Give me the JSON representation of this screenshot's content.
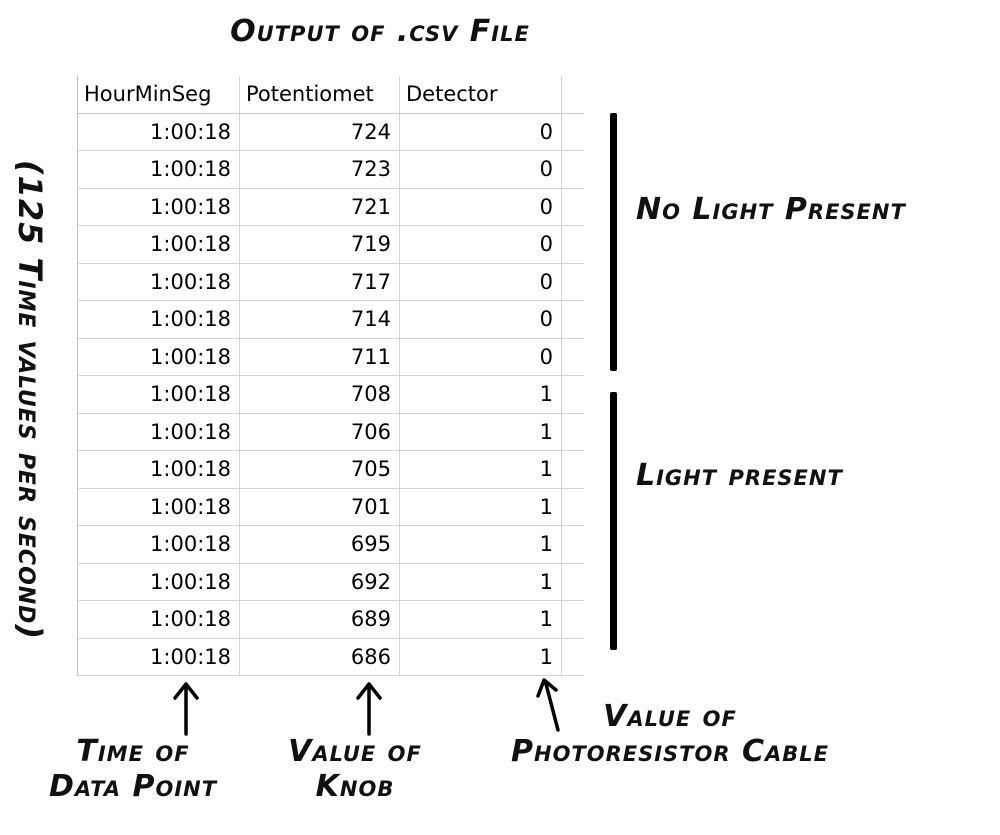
{
  "title": "Output of .csv File",
  "side_note": "(125 Time values per second)",
  "sheet": {
    "headers": [
      "HourMinSeg",
      "Potentiomet",
      "Detector"
    ],
    "rows": [
      [
        "1:00:18",
        "724",
        "0"
      ],
      [
        "1:00:18",
        "723",
        "0"
      ],
      [
        "1:00:18",
        "721",
        "0"
      ],
      [
        "1:00:18",
        "719",
        "0"
      ],
      [
        "1:00:18",
        "717",
        "0"
      ],
      [
        "1:00:18",
        "714",
        "0"
      ],
      [
        "1:00:18",
        "711",
        "0"
      ],
      [
        "1:00:18",
        "708",
        "1"
      ],
      [
        "1:00:18",
        "706",
        "1"
      ],
      [
        "1:00:18",
        "705",
        "1"
      ],
      [
        "1:00:18",
        "701",
        "1"
      ],
      [
        "1:00:18",
        "695",
        "1"
      ],
      [
        "1:00:18",
        "692",
        "1"
      ],
      [
        "1:00:18",
        "689",
        "1"
      ],
      [
        "1:00:18",
        "686",
        "1"
      ]
    ]
  },
  "groups": {
    "no_light": "No Light Present",
    "light": "Light present"
  },
  "captions": {
    "time": [
      "Time of",
      "Data Point"
    ],
    "knob": [
      "Value of",
      "Knob"
    ],
    "photo": [
      "Value of",
      "Photoresistor Cable"
    ]
  }
}
